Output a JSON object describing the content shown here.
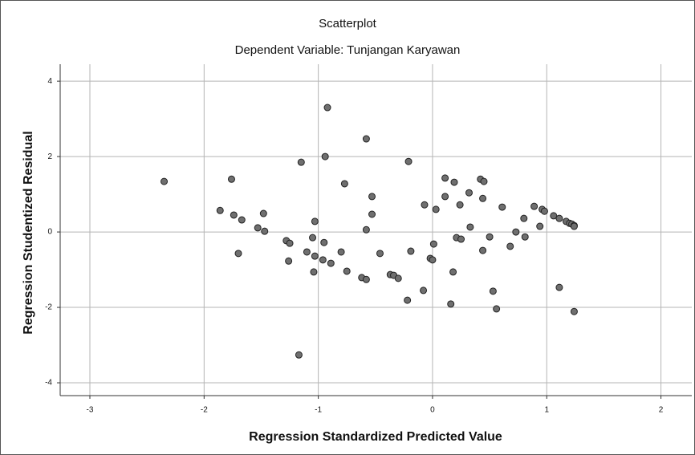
{
  "chart_data": {
    "type": "scatter",
    "title": "Scatterplot",
    "subtitle": "Dependent Variable: Tunjangan Karyawan",
    "x_label": "Regression Standardized Predicted Value",
    "y_label": "Regression Studentized Residual",
    "color": "#6f6f6f",
    "grid": true,
    "xlim": [
      -3.26,
      2.27
    ],
    "ylim": [
      -4.34,
      4.45
    ],
    "xticks": [
      -3,
      -2,
      -1,
      0,
      1,
      2
    ],
    "yticks": [
      -4,
      -2,
      0,
      2,
      4
    ],
    "x": [
      -2.35,
      -1.86,
      -1.76,
      -1.74,
      -1.67,
      -1.7,
      -1.53,
      -1.48,
      -1.47,
      -1.28,
      -1.25,
      -1.26,
      -1.15,
      -1.1,
      -1.17,
      -1.05,
      -1.03,
      -1.03,
      -1.04,
      -0.96,
      -0.95,
      -0.94,
      -0.92,
      -0.89,
      -0.8,
      -0.77,
      -0.75,
      -0.62,
      -0.58,
      -0.58,
      -0.58,
      -0.53,
      -0.53,
      -0.46,
      -0.37,
      -0.34,
      -0.3,
      -0.22,
      -0.21,
      -0.19,
      -0.08,
      -0.07,
      -0.02,
      0.0,
      0.01,
      0.03,
      0.11,
      0.11,
      0.16,
      0.19,
      0.18,
      0.21,
      0.25,
      0.24,
      0.32,
      0.33,
      0.42,
      0.45,
      0.44,
      0.44,
      0.5,
      0.53,
      0.56,
      0.61,
      0.68,
      0.73,
      0.8,
      0.81,
      0.89,
      0.94,
      0.96,
      0.98,
      1.06,
      1.11,
      1.11,
      1.17,
      1.2,
      1.22,
      1.24,
      1.24,
      1.24
    ],
    "values": [
      1.34,
      0.57,
      1.4,
      0.45,
      0.32,
      -0.57,
      0.11,
      0.49,
      0.02,
      -0.23,
      -0.3,
      -0.77,
      1.85,
      -0.53,
      -3.26,
      -0.15,
      0.28,
      -0.64,
      -1.06,
      -0.74,
      -0.28,
      2.0,
      3.3,
      -0.83,
      -0.53,
      1.28,
      -1.04,
      -1.21,
      -1.26,
      0.06,
      2.47,
      0.47,
      0.94,
      -0.57,
      -1.13,
      -1.15,
      -1.23,
      -1.81,
      1.87,
      -0.51,
      -1.55,
      0.72,
      -0.7,
      -0.74,
      -0.32,
      0.6,
      1.43,
      0.94,
      -1.91,
      1.32,
      -1.06,
      -0.15,
      -0.19,
      0.72,
      1.04,
      0.13,
      1.4,
      1.34,
      0.89,
      -0.49,
      -0.13,
      -1.57,
      -2.04,
      0.66,
      -0.38,
      0.0,
      0.36,
      -0.13,
      0.68,
      0.15,
      0.6,
      0.55,
      0.43,
      0.36,
      -1.47,
      0.28,
      0.23,
      0.21,
      0.17,
      0.15,
      -2.11
    ]
  }
}
